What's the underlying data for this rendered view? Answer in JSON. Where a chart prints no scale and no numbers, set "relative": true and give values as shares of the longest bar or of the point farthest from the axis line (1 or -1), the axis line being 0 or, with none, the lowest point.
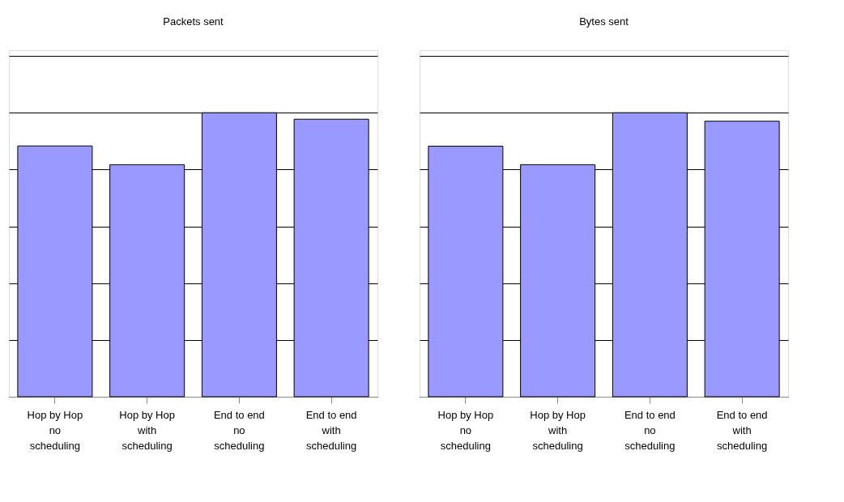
{
  "chart_data": [
    {
      "type": "bar",
      "title": "Packets sent",
      "relative": true,
      "grid": "y",
      "tick_labels": "x",
      "categories": [
        "Hop by Hop no scheduling",
        "Hop by Hop with scheduling",
        "End to end no scheduling",
        "End to end with scheduling"
      ],
      "values": [
        0.883,
        0.817,
        1,
        0.977
      ],
      "color": "#9999ff"
    },
    {
      "type": "bar",
      "title": "Bytes sent",
      "relative": true,
      "grid": "y",
      "tick_labels": "x",
      "categories": [
        "Hop by Hop no scheduling",
        "Hop by Hop with scheduling",
        "End to end no scheduling",
        "End to end with scheduling"
      ],
      "values": [
        0.882,
        0.817,
        1,
        0.97
      ],
      "color": "#9999ff"
    }
  ]
}
